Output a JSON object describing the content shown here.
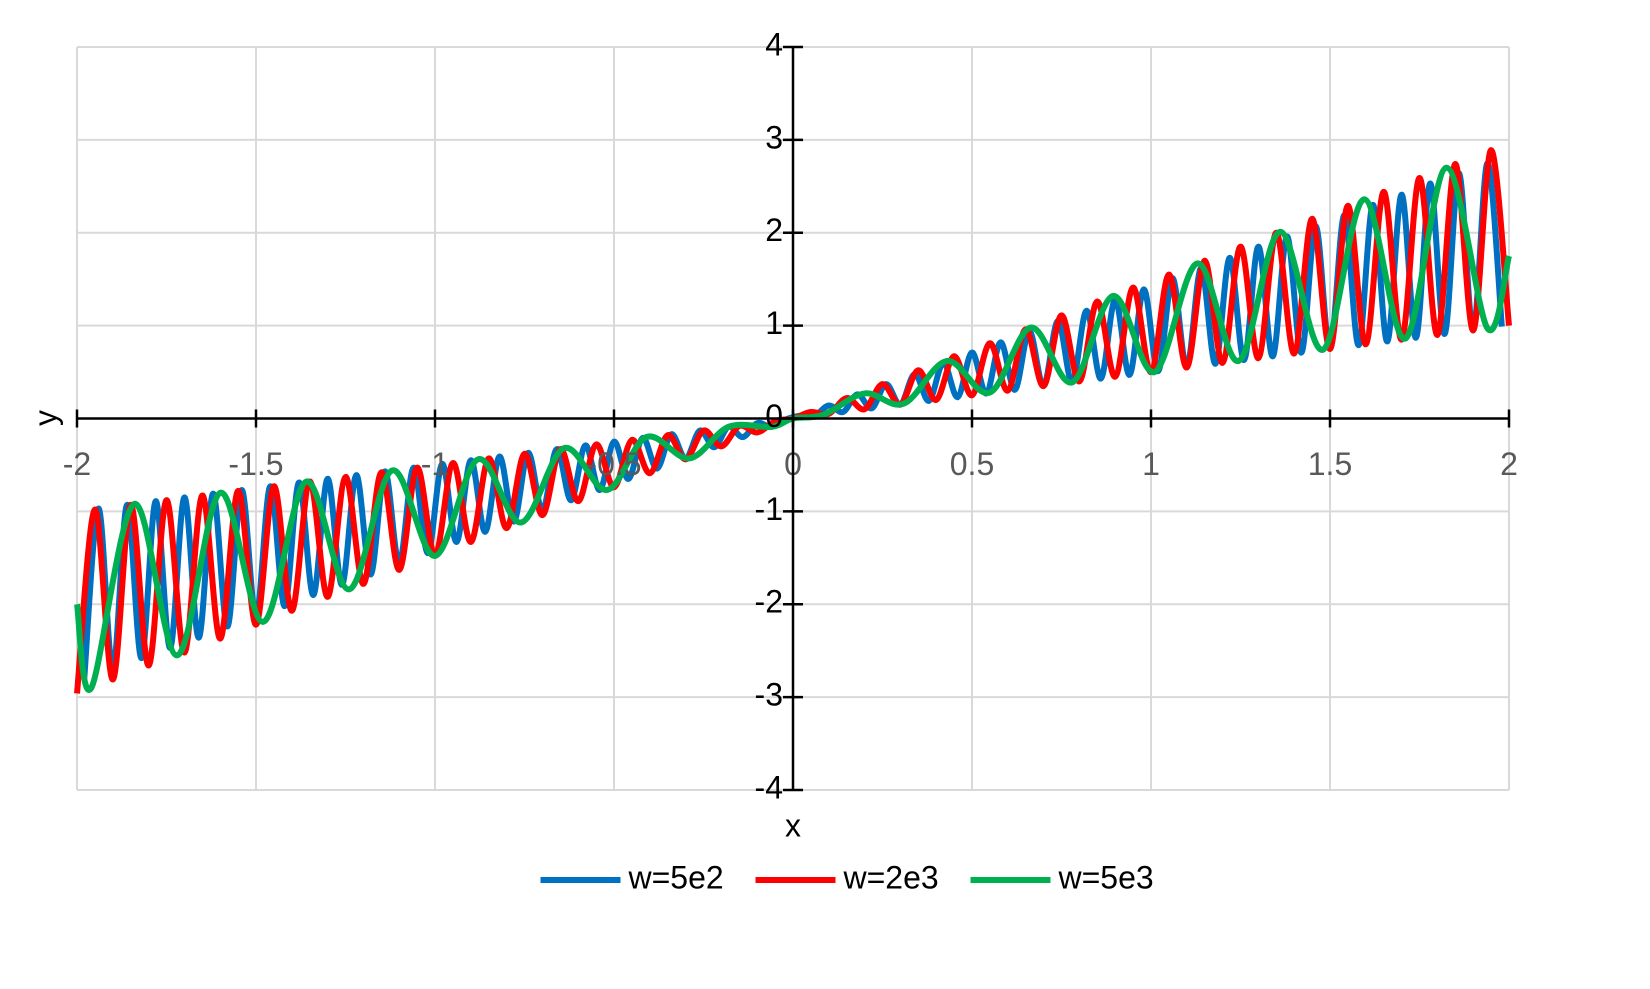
{
  "chart_data": {
    "type": "line",
    "xlabel": "x",
    "ylabel": "y",
    "xlim": [
      -2,
      2
    ],
    "ylim": [
      -4,
      4
    ],
    "xticks": [
      -2,
      -1.5,
      -1,
      -0.5,
      0,
      0.5,
      1,
      1.5,
      2
    ],
    "yticks": [
      -4,
      -3,
      -2,
      -1,
      0,
      1,
      2,
      3,
      4
    ],
    "grid": true,
    "legend": "bottom",
    "series": [
      {
        "name": "w=5e2",
        "color": "#0070c0",
        "x": [
          -1.98,
          -1.94,
          -1.9,
          -1.86,
          -1.82,
          -1.78,
          -1.74,
          -1.7,
          -1.66,
          -1.62,
          -1.58,
          -1.54,
          -1.5,
          -1.46,
          -1.42,
          -1.38,
          -1.34,
          -1.3,
          -1.26,
          -1.22,
          -1.18,
          -1.14,
          -1.1,
          -1.06,
          -1.02,
          -0.98,
          -0.94,
          -0.9,
          -0.86,
          -0.82,
          -0.78,
          -0.74,
          -0.7,
          -0.66,
          -0.62,
          -0.58,
          -0.54,
          -0.5,
          -0.46,
          -0.42,
          -0.38,
          -0.34,
          -0.3,
          -0.26,
          -0.22,
          -0.18,
          -0.14,
          -0.1,
          -0.06,
          -0.02,
          0.02,
          0.06,
          0.1,
          0.14,
          0.18,
          0.22,
          0.26,
          0.3,
          0.34,
          0.38,
          0.42,
          0.46,
          0.5,
          0.54,
          0.58,
          0.62,
          0.66,
          0.7,
          0.74,
          0.78,
          0.82,
          0.86,
          0.9,
          0.94,
          0.98,
          1.02,
          1.06,
          1.1,
          1.14,
          1.18,
          1.22,
          1.26,
          1.3,
          1.34,
          1.38,
          1.42,
          1.46,
          1.5,
          1.54,
          1.58,
          1.62,
          1.66,
          1.7,
          1.74,
          1.78,
          1.82,
          1.86,
          1.9,
          1.94,
          1.98
        ],
        "values": [
          -2.81,
          -0.97,
          -2.7,
          -0.93,
          -2.58,
          -0.89,
          -2.47,
          -0.85,
          -2.36,
          -0.81,
          -2.24,
          -0.77,
          -2.13,
          -0.73,
          -2.02,
          -0.69,
          -1.9,
          -0.65,
          -1.79,
          -0.61,
          -1.68,
          -0.57,
          -1.56,
          -0.53,
          -1.45,
          -0.49,
          -1.33,
          -0.45,
          -1.22,
          -0.41,
          -1.11,
          -0.37,
          -0.99,
          -0.33,
          -0.88,
          -0.29,
          -0.77,
          -0.25,
          -0.65,
          -0.21,
          -0.54,
          -0.17,
          -0.43,
          -0.13,
          -0.31,
          -0.09,
          -0.2,
          -0.05,
          -0.09,
          -0.01,
          0.03,
          0.03,
          0.14,
          0.07,
          0.26,
          0.11,
          0.37,
          0.15,
          0.48,
          0.19,
          0.6,
          0.23,
          0.71,
          0.27,
          0.82,
          0.31,
          0.94,
          0.35,
          1.05,
          0.39,
          1.16,
          0.43,
          1.28,
          0.47,
          1.39,
          0.51,
          1.51,
          0.55,
          1.62,
          0.59,
          1.73,
          0.63,
          1.85,
          0.67,
          1.96,
          0.71,
          2.07,
          0.75,
          2.19,
          0.79,
          2.3,
          0.83,
          2.41,
          0.87,
          2.53,
          0.91,
          2.64,
          0.95,
          2.75,
          0.99
        ]
      },
      {
        "name": "w=2e3",
        "color": "#ff0000",
        "x": [
          -2,
          -1.95,
          -1.9,
          -1.85,
          -1.8,
          -1.75,
          -1.7,
          -1.65,
          -1.6,
          -1.55,
          -1.5,
          -1.45,
          -1.4,
          -1.35,
          -1.3,
          -1.25,
          -1.2,
          -1.15,
          -1.1,
          -1.05,
          -1,
          -0.95,
          -0.9,
          -0.85,
          -0.8,
          -0.75,
          -0.7,
          -0.65,
          -0.6,
          -0.55,
          -0.5,
          -0.45,
          -0.4,
          -0.35,
          -0.3,
          -0.25,
          -0.2,
          -0.15,
          -0.1,
          -0.05,
          0,
          0.05,
          0.1,
          0.15,
          0.2,
          0.25,
          0.3,
          0.35,
          0.4,
          0.45,
          0.5,
          0.55,
          0.6,
          0.65,
          0.7,
          0.75,
          0.8,
          0.85,
          0.9,
          0.95,
          1,
          1.05,
          1.1,
          1.15,
          1.2,
          1.25,
          1.3,
          1.35,
          1.4,
          1.45,
          1.5,
          1.55,
          1.6,
          1.65,
          1.7,
          1.75,
          1.8,
          1.85,
          1.9,
          1.95,
          2
        ],
        "values": [
          -2.96,
          -0.98,
          -2.81,
          -0.93,
          -2.66,
          -0.88,
          -2.52,
          -0.83,
          -2.37,
          -0.78,
          -2.22,
          -0.73,
          -2.07,
          -0.68,
          -1.92,
          -0.63,
          -1.78,
          -0.58,
          -1.63,
          -0.53,
          -1.48,
          -0.48,
          -1.33,
          -0.43,
          -1.18,
          -0.38,
          -1.04,
          -0.33,
          -0.89,
          -0.28,
          -0.74,
          -0.23,
          -0.59,
          -0.18,
          -0.44,
          -0.13,
          -0.3,
          -0.08,
          -0.15,
          -0.03,
          0,
          0.07,
          0.05,
          0.22,
          0.1,
          0.37,
          0.15,
          0.52,
          0.2,
          0.67,
          0.25,
          0.81,
          0.3,
          0.96,
          0.35,
          1.11,
          0.4,
          1.26,
          0.45,
          1.41,
          0.5,
          1.55,
          0.55,
          1.7,
          0.6,
          1.85,
          0.65,
          2.0,
          0.7,
          2.15,
          0.75,
          2.29,
          0.8,
          2.44,
          0.85,
          2.59,
          0.9,
          2.74,
          0.95,
          2.89,
          1.0
        ]
      },
      {
        "name": "w=5e3",
        "color": "#00b050",
        "x": [
          -2,
          -1.96,
          -1.84,
          -1.72,
          -1.6,
          -1.48,
          -1.36,
          -1.24,
          -1.12,
          -1,
          -0.88,
          -0.76,
          -0.64,
          -0.52,
          -0.41,
          -0.29,
          -0.18,
          -0.06,
          0,
          0.085,
          0.2,
          0.31,
          0.43,
          0.55,
          0.665,
          0.78,
          0.895,
          1.01,
          1.13,
          1.245,
          1.36,
          1.48,
          1.595,
          1.71,
          1.825,
          1.94,
          2
        ],
        "values": [
          -2.0,
          -2.9,
          -0.92,
          -2.55,
          -0.8,
          -2.19,
          -0.68,
          -1.84,
          -0.56,
          -1.48,
          -0.44,
          -1.12,
          -0.32,
          -0.77,
          -0.2,
          -0.43,
          -0.09,
          -0.09,
          0,
          0.04,
          0.27,
          0.16,
          0.62,
          0.28,
          0.98,
          0.39,
          1.32,
          0.5,
          1.67,
          0.62,
          2.01,
          0.74,
          2.36,
          0.86,
          2.7,
          0.97,
          1.75
        ]
      }
    ]
  }
}
